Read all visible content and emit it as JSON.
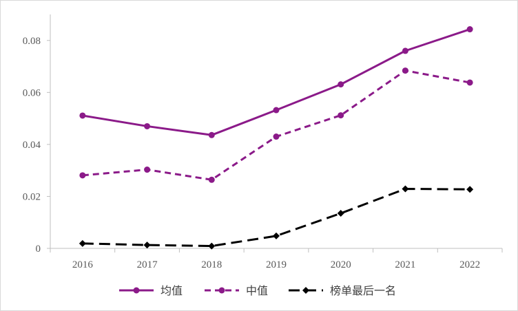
{
  "chart_data": {
    "type": "line",
    "title": "",
    "xlabel": "",
    "ylabel": "",
    "categories": [
      "2016",
      "2017",
      "2018",
      "2019",
      "2020",
      "2021",
      "2022"
    ],
    "ylim": [
      0,
      0.09
    ],
    "yticks": [
      "0",
      "0.02",
      "0.04",
      "0.06",
      "0.08"
    ],
    "ytick_values": [
      0,
      0.02,
      0.04,
      0.06,
      0.08
    ],
    "grid": false,
    "legend_position": "bottom",
    "series": [
      {
        "name": "均值",
        "values": [
          0.0511,
          0.047,
          0.0436,
          0.0532,
          0.0631,
          0.076,
          0.0843
        ],
        "color": "#8B1A89",
        "line_style": "solid",
        "marker": "circle"
      },
      {
        "name": "中值",
        "values": [
          0.0281,
          0.0303,
          0.0264,
          0.043,
          0.0512,
          0.0684,
          0.0638
        ],
        "color": "#8B1A89",
        "line_style": "dashed",
        "marker": "circle"
      },
      {
        "name": "榜单最后一名",
        "values": [
          0.0019,
          0.0013,
          0.0009,
          0.0048,
          0.0135,
          0.0229,
          0.0227
        ],
        "color": "#000000",
        "line_style": "long-dashed",
        "marker": "diamond"
      }
    ]
  }
}
